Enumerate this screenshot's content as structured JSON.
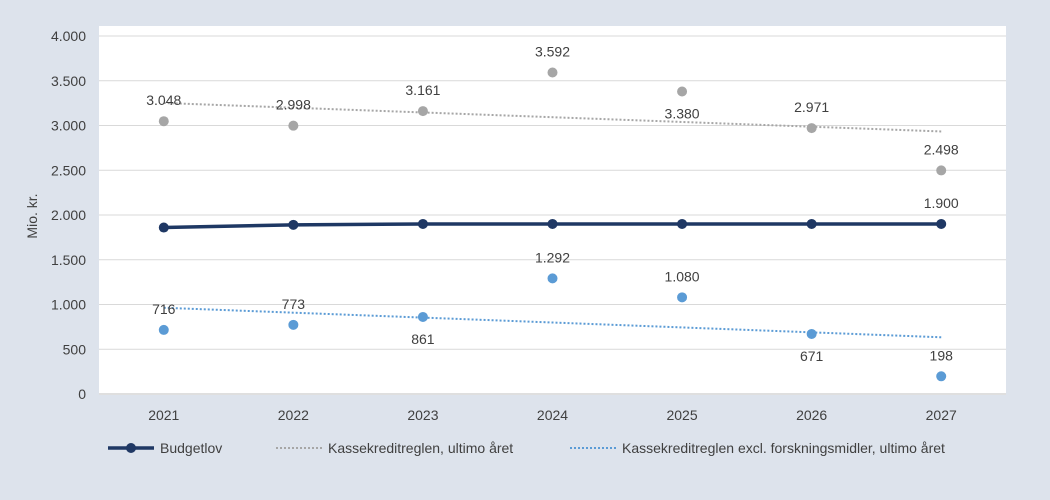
{
  "chart_data": {
    "type": "line",
    "title": "",
    "ylabel": "Mio. kr.",
    "xlabel": "",
    "ylim": [
      0,
      4000
    ],
    "yticks": [
      0,
      500,
      1000,
      1500,
      2000,
      2500,
      3000,
      3500,
      4000
    ],
    "ytick_labels": [
      "0",
      "500",
      "1.000",
      "1.500",
      "2.000",
      "2.500",
      "3.000",
      "3.500",
      "4.000"
    ],
    "categories": [
      "2021",
      "2022",
      "2023",
      "2024",
      "2025",
      "2026",
      "2027"
    ],
    "grid": true,
    "legend_position": "bottom",
    "series": [
      {
        "name": "Budgetlov",
        "kind": "line-with-markers",
        "color": "#1f3864",
        "values": [
          1860,
          1890,
          1900,
          1900,
          1900,
          1900,
          1900
        ],
        "labels": [
          "",
          "",
          "",
          "",
          "",
          "",
          "1.900"
        ]
      },
      {
        "name": "Kassekreditreglen, ultimo året",
        "kind": "scatter-with-trendline",
        "color": "#a6a6a6",
        "values": [
          3048,
          2998,
          3161,
          3592,
          3380,
          2971,
          2498
        ],
        "labels": [
          "3.048",
          "2.998",
          "3.161",
          "3.592",
          "3.380",
          "2.971",
          "2.498"
        ]
      },
      {
        "name": "Kassekreditreglen  excl. forskningsmidler, ultimo året",
        "kind": "scatter-with-trendline",
        "color": "#5b9bd5",
        "values": [
          716,
          773,
          861,
          1292,
          1080,
          671,
          198
        ],
        "labels": [
          "716",
          "773",
          "861",
          "1.292",
          "1.080",
          "671",
          "198"
        ]
      }
    ]
  }
}
